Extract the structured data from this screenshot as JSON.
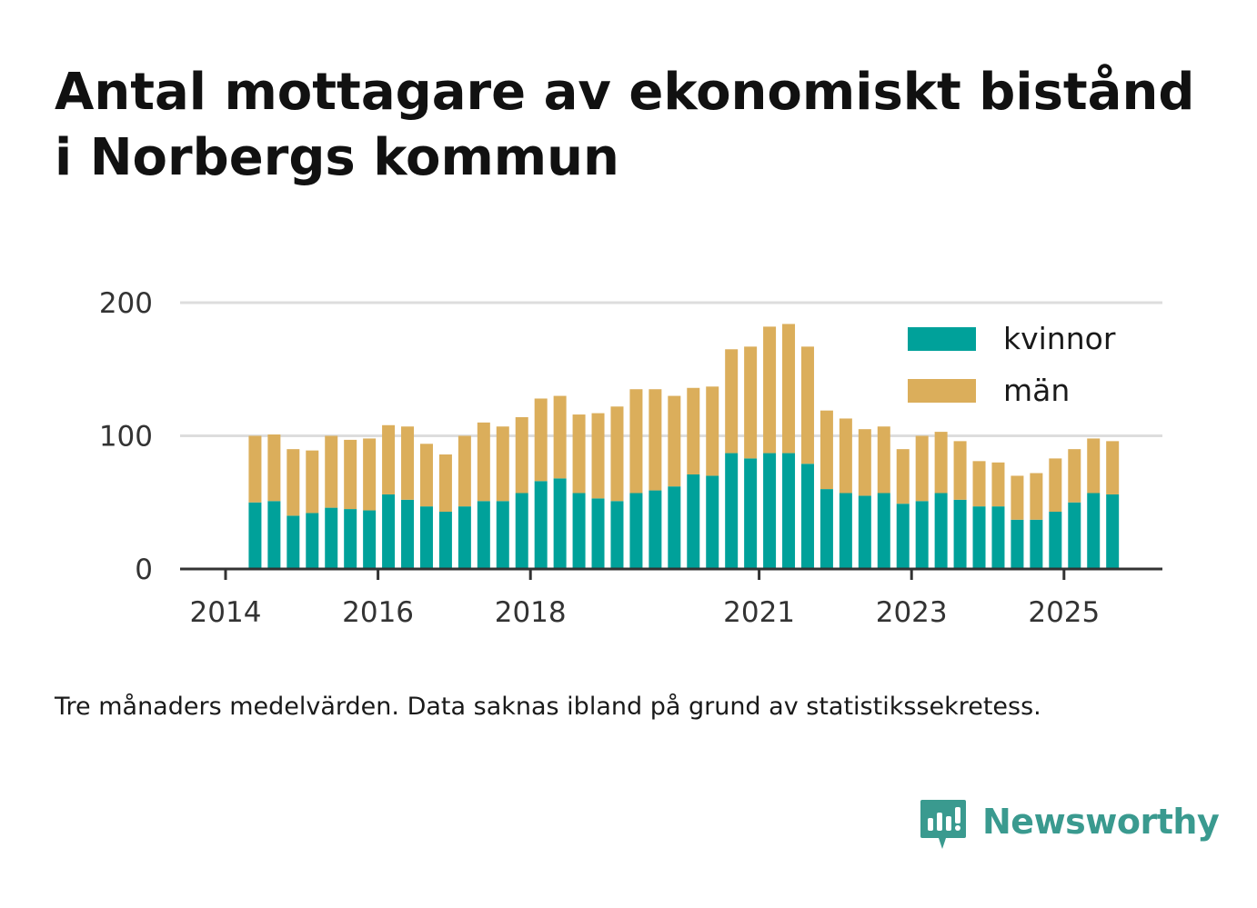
{
  "title": {
    "line1": "Antal mottagare av ekonomiskt bistånd",
    "line2": "i Norbergs kommun"
  },
  "caption": "Tre månaders medelvärden. Data saknas ibland på grund av statistikssekretess.",
  "brand": {
    "name": "Newsworthy",
    "icon": "newsworthy-logo-icon",
    "color": "#3a9a8f"
  },
  "chart_data": {
    "type": "bar",
    "stacked": true,
    "ylim": [
      0,
      200
    ],
    "yticks": [
      0,
      100,
      200
    ],
    "xticks": [
      "2014",
      "2016",
      "2018",
      "2021",
      "2023",
      "2025"
    ],
    "grid": true,
    "legend_position": "top-right",
    "colors": {
      "kvinnor": "#00a19a",
      "män": "#dbae5b"
    },
    "categories": [
      "2014Q2",
      "2014Q3",
      "2014Q4",
      "2015Q1",
      "2015Q2",
      "2015Q3",
      "2015Q4",
      "2016Q1",
      "2016Q2",
      "2016Q3",
      "2016Q4",
      "2017Q1",
      "2017Q2",
      "2017Q3",
      "2017Q4",
      "2018Q1",
      "2018Q2",
      "2018Q3",
      "2018Q4",
      "2019Q1",
      "2019Q2",
      "2019Q3",
      "2019Q4",
      "2020Q1",
      "2020Q2",
      "2020Q3",
      "2020Q4",
      "2021Q1",
      "2021Q2",
      "2021Q3",
      "2021Q4",
      "2022Q1",
      "2022Q2",
      "2022Q3",
      "2022Q4",
      "2023Q1",
      "2023Q2",
      "2023Q3",
      "2023Q4",
      "2024Q1",
      "2024Q2",
      "2024Q3",
      "2024Q4",
      "2025Q1",
      "2025Q2",
      "2025Q3"
    ],
    "series": [
      {
        "name": "kvinnor",
        "values": [
          50,
          51,
          40,
          42,
          46,
          45,
          44,
          56,
          52,
          47,
          43,
          47,
          51,
          51,
          57,
          66,
          68,
          57,
          53,
          51,
          57,
          59,
          62,
          71,
          70,
          87,
          83,
          87,
          87,
          79,
          60,
          57,
          55,
          57,
          49,
          51,
          57,
          52,
          47,
          47,
          37,
          37,
          43,
          50,
          57,
          56
        ]
      },
      {
        "name": "män",
        "values": [
          50,
          50,
          50,
          47,
          54,
          52,
          54,
          52,
          55,
          47,
          43,
          53,
          59,
          56,
          57,
          62,
          62,
          59,
          64,
          71,
          78,
          76,
          68,
          65,
          67,
          78,
          84,
          95,
          97,
          88,
          59,
          56,
          50,
          50,
          41,
          49,
          46,
          44,
          34,
          33,
          33,
          35,
          40,
          40,
          41,
          40
        ]
      }
    ]
  }
}
